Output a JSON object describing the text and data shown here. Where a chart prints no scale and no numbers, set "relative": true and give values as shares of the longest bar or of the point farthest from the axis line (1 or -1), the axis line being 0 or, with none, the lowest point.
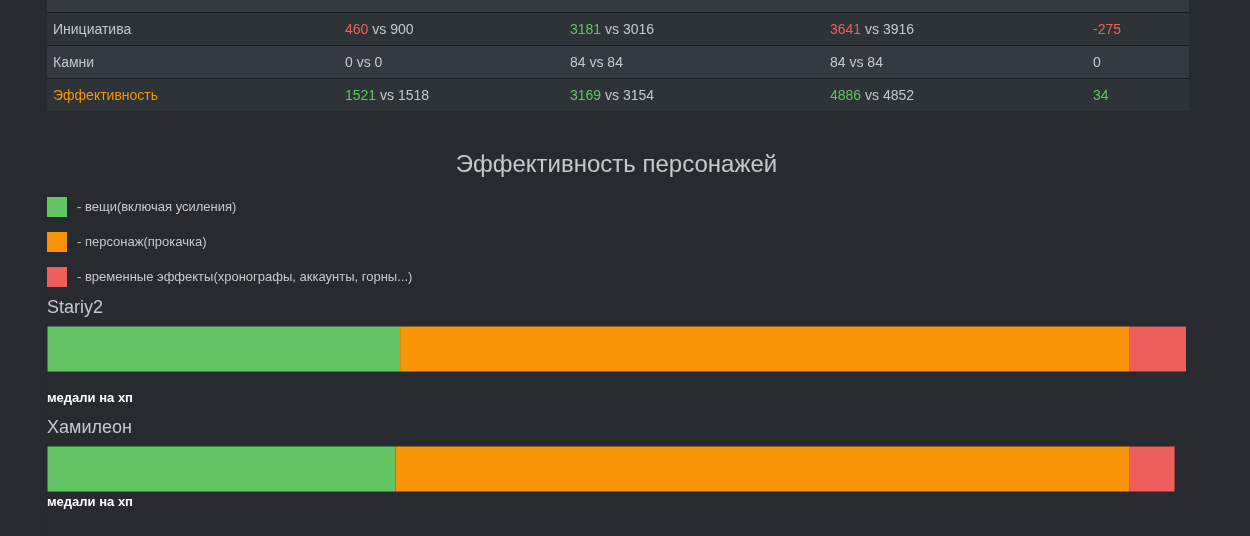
{
  "chart_data": [
    {
      "type": "other",
      "annotations": [
        "Инициатива",
        "460 vs 900",
        "3181 vs 3016",
        "3641 vs 3916",
        "-275",
        "Камни",
        "0 vs 0",
        "84 vs 84",
        "84 vs 84",
        "0",
        "Эффективность",
        "1521 vs 1518",
        "3169 vs 3154",
        "4886 vs 4852",
        "34"
      ],
      "colors": [
        "#c8c8c8",
        "#ee5f5b",
        "#62c462",
        "#ee5f5b",
        "#ee5f5b",
        "#c8c8c8",
        "#c8c8c8",
        "#c8c8c8",
        "#c8c8c8",
        "#c8c8c8",
        "#f89406",
        "#62c462",
        "#62c462",
        "#62c462",
        "#62c462"
      ]
    },
    {
      "type": "bar",
      "orientation": "horizontal",
      "stacked": true,
      "relative": true,
      "title": "Эффективность персонажей",
      "categories": [
        "Stariy2",
        "Хамилеон"
      ],
      "series": [
        {
          "name": "- вещи(включая усиления)",
          "color": "#62c462",
          "values": [
            0.31,
            0.306
          ]
        },
        {
          "name": "- персонаж(прокачка)",
          "color": "#f89406",
          "values": [
            0.64,
            0.644
          ]
        },
        {
          "name": "- временные эффекты(хронографы, аккаунты, горны...)",
          "color": "#ee5f5b",
          "values": [
            0.05,
            0.04
          ]
        }
      ],
      "legend": "top left",
      "annotations": [
        "медали на хп",
        "медали на хп"
      ]
    }
  ]
}
